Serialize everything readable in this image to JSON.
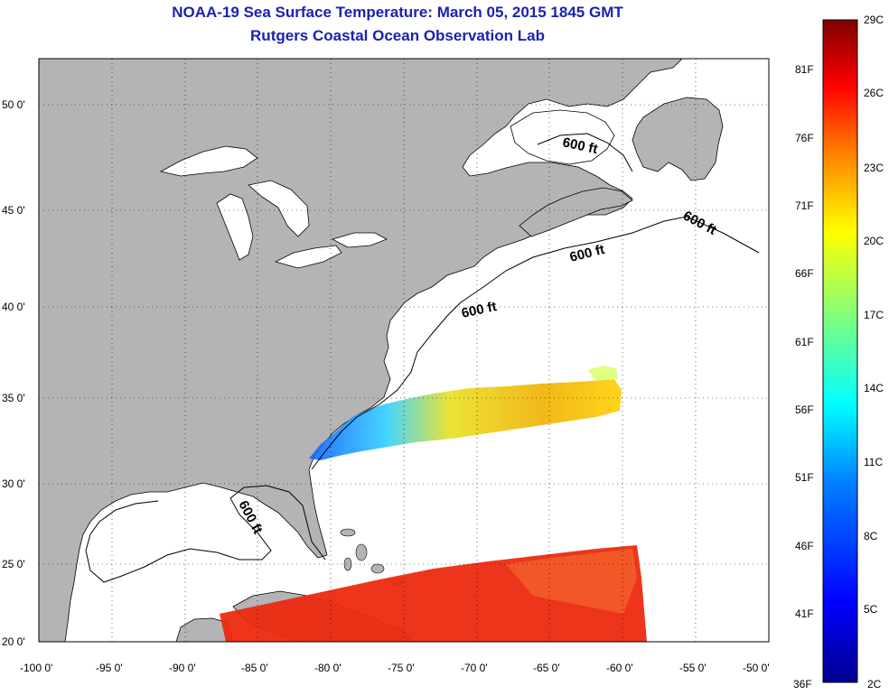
{
  "header": {
    "title": "NOAA-19 Sea Surface Temperature:  March 05, 2015 1845 GMT",
    "subtitle": "Rutgers Coastal Ocean Observation Lab"
  },
  "map": {
    "lon_range": [
      -100,
      -50
    ],
    "lat_range": [
      20,
      52.5
    ],
    "lon_ticks": [
      {
        "value": -100,
        "label": "-100 0'"
      },
      {
        "value": -95,
        "label": "-95 0'"
      },
      {
        "value": -90,
        "label": "-90 0'"
      },
      {
        "value": -85,
        "label": "-85 0'"
      },
      {
        "value": -80,
        "label": "-80 0'"
      },
      {
        "value": -75,
        "label": "-75 0'"
      },
      {
        "value": -70,
        "label": "-70 0'"
      },
      {
        "value": -65,
        "label": "-65 0'"
      },
      {
        "value": -60,
        "label": "-60 0'"
      },
      {
        "value": -55,
        "label": "-55 0'"
      },
      {
        "value": -50,
        "label": "-50 0'"
      }
    ],
    "lat_ticks": [
      {
        "value": 20,
        "label": "20 0'"
      },
      {
        "value": 25,
        "label": "25 0'"
      },
      {
        "value": 30,
        "label": "30 0'"
      },
      {
        "value": 35,
        "label": "35 0'"
      },
      {
        "value": 40,
        "label": "40 0'"
      },
      {
        "value": 45,
        "label": "45 0'"
      },
      {
        "value": 50,
        "label": "50 0'"
      }
    ],
    "grid": "dotted",
    "land_color": "#b4b4b4",
    "contour_labels": [
      "600 ft",
      "600 ft",
      "600 ft",
      "600 ft",
      "600 ft"
    ]
  },
  "colorbar": {
    "celsius_labels": [
      "29C",
      "26C",
      "23C",
      "20C",
      "17C",
      "14C",
      "11C",
      "8C",
      "5C",
      "2C"
    ],
    "fahrenheit_labels": [
      "81F",
      "76F",
      "71F",
      "66F",
      "61F",
      "56F",
      "51F",
      "46F",
      "41F",
      "36F"
    ],
    "colors": [
      "#00008f",
      "#0000ff",
      "#007fff",
      "#00ffff",
      "#7fff7f",
      "#ffff00",
      "#ff7f00",
      "#ff0000",
      "#800000"
    ]
  }
}
